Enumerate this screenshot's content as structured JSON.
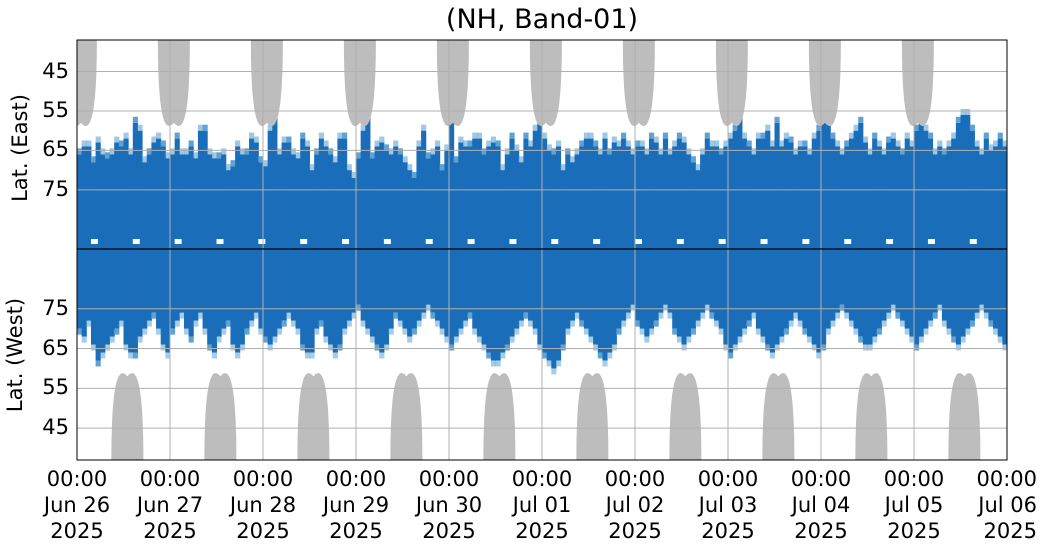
{
  "chart_data": {
    "type": "heatmap",
    "title": "(NH, Band-01)",
    "ylabel_east": "Lat. (East)",
    "ylabel_west": "Lat. (West)",
    "y_ticks_east": [
      "45",
      "55",
      "65",
      "75"
    ],
    "y_ticks_west": [
      "75",
      "65",
      "55",
      "45"
    ],
    "x_ticks": [
      {
        "time": "00:00",
        "date": "Jun 26",
        "year": "2025"
      },
      {
        "time": "00:00",
        "date": "Jun 27",
        "year": "2025"
      },
      {
        "time": "00:00",
        "date": "Jun 28",
        "year": "2025"
      },
      {
        "time": "00:00",
        "date": "Jun 29",
        "year": "2025"
      },
      {
        "time": "00:00",
        "date": "Jun 30",
        "year": "2025"
      },
      {
        "time": "00:00",
        "date": "Jul 01",
        "year": "2025"
      },
      {
        "time": "00:00",
        "date": "Jul 02",
        "year": "2025"
      },
      {
        "time": "00:00",
        "date": "Jul 03",
        "year": "2025"
      },
      {
        "time": "00:00",
        "date": "Jul 04",
        "year": "2025"
      },
      {
        "time": "00:00",
        "date": "Jul 05",
        "year": "2025"
      },
      {
        "time": "00:00",
        "date": "Jul 06",
        "year": "2025"
      }
    ],
    "x_range": [
      "2025-06-26 00:00",
      "2025-07-06 00:00"
    ],
    "y_range_east_deg": [
      37,
      90
    ],
    "y_range_west_deg": [
      90,
      37
    ],
    "grid": true,
    "colors": {
      "strong": "#1a6db8",
      "weak": "#5fa3d4",
      "daylight": "#bdbdbd",
      "pole_line": "#000000",
      "grid": "#b0b0b0"
    },
    "daylight_peaks_east": [
      {
        "time": "2025-06-26 01:00",
        "lowest_lat": 58
      },
      {
        "time": "2025-06-27 01:00",
        "lowest_lat": 58
      },
      {
        "time": "2025-06-28 01:00",
        "lowest_lat": 58
      },
      {
        "time": "2025-06-29 01:00",
        "lowest_lat": 58
      },
      {
        "time": "2025-06-30 01:00",
        "lowest_lat": 58
      },
      {
        "time": "2025-07-01 01:00",
        "lowest_lat": 58
      },
      {
        "time": "2025-07-02 01:00",
        "lowest_lat": 58
      },
      {
        "time": "2025-07-03 01:00",
        "lowest_lat": 58
      },
      {
        "time": "2025-07-04 01:00",
        "lowest_lat": 58
      },
      {
        "time": "2025-07-05 01:00",
        "lowest_lat": 58
      }
    ],
    "daylight_peaks_west": [
      {
        "time": "2025-06-26 13:00",
        "lowest_lat": 58
      },
      {
        "time": "2025-06-27 13:00",
        "lowest_lat": 58
      },
      {
        "time": "2025-06-28 13:00",
        "lowest_lat": 58
      },
      {
        "time": "2025-06-29 13:00",
        "lowest_lat": 58
      },
      {
        "time": "2025-06-30 13:00",
        "lowest_lat": 58
      },
      {
        "time": "2025-07-01 13:00",
        "lowest_lat": 58
      },
      {
        "time": "2025-07-02 13:00",
        "lowest_lat": 58
      },
      {
        "time": "2025-07-03 13:00",
        "lowest_lat": 58
      },
      {
        "time": "2025-07-04 13:00",
        "lowest_lat": 58
      },
      {
        "time": "2025-07-05 13:00",
        "lowest_lat": 58
      }
    ],
    "activity_east_low_edge_lat": [
      66,
      64,
      64,
      68,
      63,
      66,
      67,
      66,
      63,
      64,
      62,
      66,
      58,
      60,
      68,
      66,
      63,
      62,
      64,
      67,
      66,
      62,
      66,
      66,
      64,
      67,
      60,
      60,
      66,
      67,
      67,
      66,
      70,
      69,
      64,
      66,
      66,
      62,
      63,
      68,
      69,
      60,
      56,
      66,
      63,
      63,
      66,
      67,
      62,
      64,
      70,
      66,
      62,
      64,
      66,
      68,
      62,
      62,
      70,
      72,
      67,
      60,
      56,
      67,
      64,
      63,
      65,
      66,
      64,
      66,
      68,
      70,
      72,
      64,
      60,
      67,
      66,
      64,
      70,
      65,
      58,
      68,
      63,
      64,
      64,
      62,
      62,
      66,
      64,
      63,
      64,
      70,
      66,
      62,
      65,
      68,
      62,
      64,
      60,
      56,
      62,
      65,
      66,
      64,
      70,
      66,
      68,
      66,
      64,
      62,
      62,
      64,
      66,
      62,
      66,
      63,
      64,
      62,
      64,
      66,
      64,
      64,
      66,
      62,
      63,
      66,
      62,
      66,
      64,
      62,
      63,
      66,
      68,
      70,
      66,
      62,
      64,
      64,
      66,
      64,
      62,
      60,
      56,
      62,
      64,
      66,
      62,
      62,
      60,
      64,
      58,
      64,
      62,
      63,
      66,
      64,
      64,
      66,
      62,
      60,
      56,
      58,
      62,
      64,
      66,
      64,
      62,
      60,
      58,
      63,
      66,
      62,
      64,
      66,
      63,
      62,
      64,
      66,
      62,
      64,
      60,
      58,
      60,
      62,
      66,
      64,
      66,
      64,
      62,
      58,
      56,
      56,
      60,
      64,
      66,
      62,
      65,
      64,
      62,
      64
    ],
    "activity_west_low_edge_lat": [
      70,
      68,
      72,
      66,
      62,
      64,
      66,
      68,
      70,
      72,
      66,
      64,
      64,
      68,
      70,
      72,
      74,
      70,
      66,
      64,
      70,
      72,
      74,
      70,
      68,
      72,
      74,
      70,
      66,
      64,
      68,
      70,
      72,
      66,
      64,
      66,
      70,
      72,
      74,
      70,
      68,
      66,
      68,
      70,
      72,
      74,
      72,
      70,
      66,
      64,
      64,
      70,
      72,
      68,
      66,
      64,
      66,
      70,
      72,
      74,
      76,
      72,
      70,
      68,
      66,
      64,
      66,
      70,
      74,
      72,
      70,
      68,
      70,
      72,
      74,
      76,
      74,
      72,
      70,
      68,
      66,
      68,
      70,
      72,
      74,
      70,
      68,
      66,
      64,
      62,
      62,
      64,
      66,
      68,
      70,
      72,
      74,
      72,
      70,
      66,
      64,
      62,
      60,
      62,
      66,
      70,
      72,
      74,
      72,
      70,
      68,
      66,
      64,
      62,
      64,
      66,
      70,
      72,
      74,
      76,
      72,
      70,
      68,
      70,
      72,
      74,
      76,
      74,
      70,
      68,
      66,
      68,
      70,
      72,
      74,
      76,
      74,
      72,
      70,
      66,
      64,
      66,
      68,
      70,
      72,
      74,
      70,
      68,
      66,
      64,
      66,
      68,
      70,
      72,
      74,
      72,
      70,
      68,
      66,
      64,
      66,
      70,
      72,
      74,
      76,
      74,
      72,
      70,
      68,
      66,
      66,
      68,
      70,
      72,
      74,
      76,
      74,
      72,
      70,
      68,
      66,
      68,
      70,
      72,
      74,
      76,
      72,
      70,
      68,
      66,
      68,
      70,
      72,
      74,
      76,
      74,
      72,
      70,
      68,
      66
    ]
  }
}
